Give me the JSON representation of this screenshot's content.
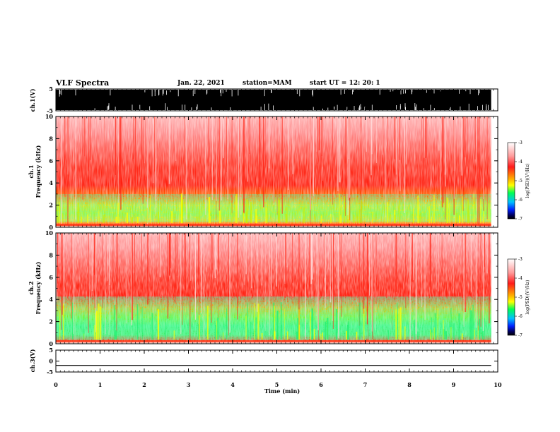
{
  "header": {
    "title": "VLF Spectra",
    "date": "Jan. 22, 2021",
    "station": "station=MAM",
    "start_ut": "start UT =  12: 20: 1"
  },
  "colors": {
    "background": "#ffffff",
    "waveform": "#000000",
    "colormap": [
      "#ffffff",
      "#ff9a9a",
      "#ff1a1a",
      "#ffff00",
      "#00ff55",
      "#0080ff",
      "#0000ff",
      "#000000"
    ]
  },
  "chart_data": [
    {
      "type": "line",
      "name": "ch1-waveform",
      "ylabel": "ch.1(V)",
      "ylim": [
        -5,
        5
      ],
      "yticks": [
        "5",
        "-5"
      ],
      "xlim": [
        0,
        10
      ],
      "data_end_min": 9.85,
      "description_value": "saturated broadband signal spanning roughly -5 to 5 V"
    },
    {
      "type": "heatmap",
      "name": "ch1-spectrogram",
      "ylabel_line1": "ch.1",
      "ylabel_line2": "Frequency (kHz)",
      "ylim": [
        0,
        10
      ],
      "yticks": [
        "0",
        "2",
        "4",
        "6",
        "8",
        "10"
      ],
      "xlim": [
        0,
        10
      ],
      "data_end_min": 9.85,
      "colorbar": {
        "label": "log(PSD)(V²/Hz)",
        "range": [
          -7,
          -3
        ],
        "ticks": [
          "-3",
          "-4",
          "-5",
          "-6",
          "-7"
        ]
      }
    },
    {
      "type": "heatmap",
      "name": "ch2-spectrogram",
      "ylabel_line1": "ch.2",
      "ylabel_line2": "Frequency (kHz)",
      "ylim": [
        0,
        10
      ],
      "yticks": [
        "0",
        "2",
        "4",
        "6",
        "8",
        "10"
      ],
      "xlim": [
        0,
        10
      ],
      "data_end_min": 9.85,
      "colorbar": {
        "label": "log(PSD)(V²/Hz)",
        "range": [
          -7,
          -3
        ],
        "ticks": [
          "-3",
          "-4",
          "-5",
          "-6",
          "-7"
        ]
      }
    },
    {
      "type": "line",
      "name": "ch3-waveform",
      "ylabel": "ch.3(V)",
      "ylim": [
        -5,
        5
      ],
      "yticks": [
        "5",
        "0",
        "-5"
      ],
      "xlim": [
        0,
        10
      ],
      "data_end_min": 9.85,
      "constant_value": -2
    }
  ],
  "xaxis": {
    "label": "Time (min)",
    "ticks": [
      "0",
      "1",
      "2",
      "3",
      "4",
      "5",
      "6",
      "7",
      "8",
      "9",
      "10"
    ]
  }
}
